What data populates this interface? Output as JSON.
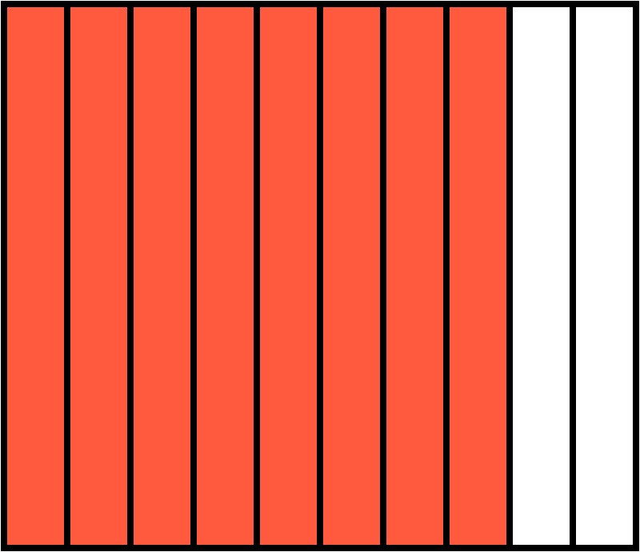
{
  "fraction_model": {
    "total_parts": 10,
    "shaded_parts": 8,
    "orientation": "vertical-strips",
    "colors": {
      "shaded": "#ff5a3d",
      "unshaded": "#ffffff",
      "outline": "#000000"
    }
  }
}
